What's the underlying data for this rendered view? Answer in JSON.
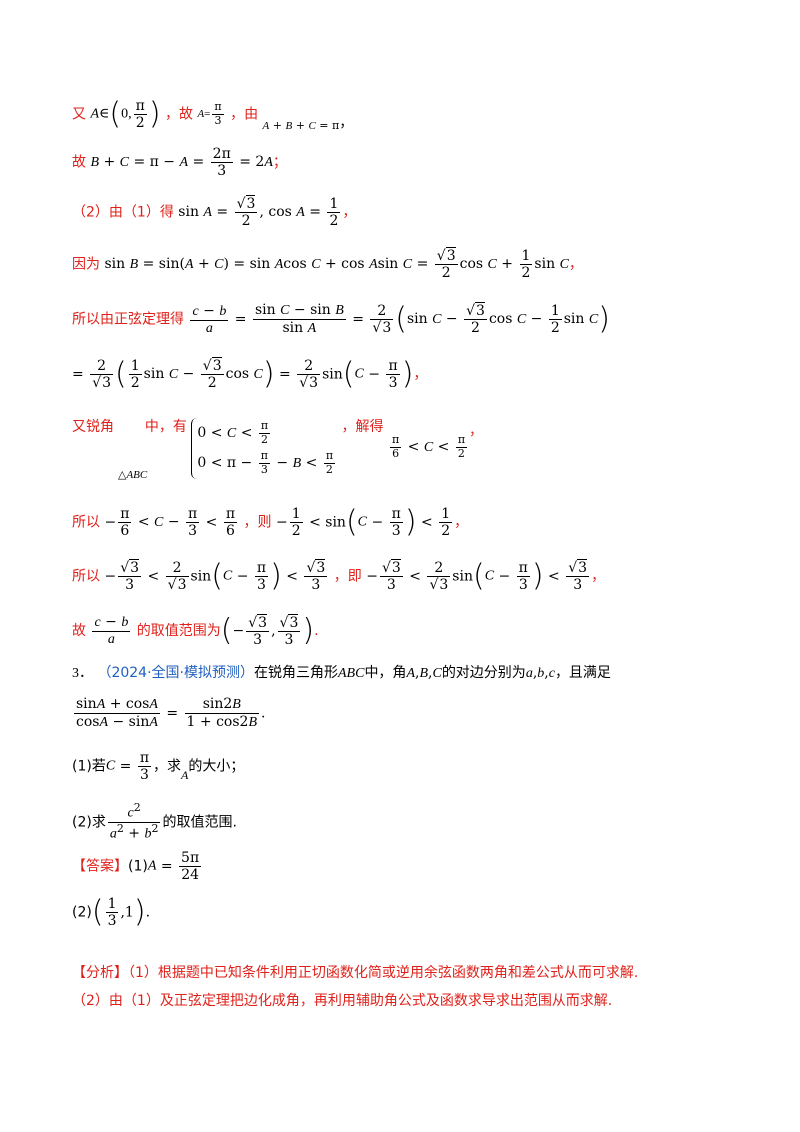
{
  "l1": {
    "a": "又",
    "b": "，故",
    "c": "，由"
  },
  "l2": {
    "a": "故"
  },
  "l3": {
    "a": "（2）由（1）得"
  },
  "l4": {
    "a": "因为"
  },
  "l5": {
    "a": "所以由正弦定理得"
  },
  "l7": {
    "a": "又锐角",
    "b": "中，有",
    "c": "，解得",
    "abc": "△ABC"
  },
  "l8": {
    "a": "所以",
    "b": "，则"
  },
  "l9": {
    "a": "所以",
    "b": "，即"
  },
  "l10": {
    "a": "故",
    "b": "的取值范围为"
  },
  "q3": {
    "num": "3．",
    "source": "（2024·全国·模拟预测）",
    "text_a": "在锐角三角形",
    "text_b": "中，角",
    "text_c": "的对边分别为",
    "text_d": "，且满足",
    "p1": "(1)若",
    "p1b": "，求",
    "p1c": "的大小；",
    "p2": "(2)求",
    "p2b": "的取值范围."
  },
  "answer": {
    "label": "【答案】",
    "a1": "(1)",
    "a2": "(2)"
  },
  "analysis": {
    "label": "【分析】",
    "t1": "（1）根据题中已知条件利用正切函数化简或逆用余弦函数两角和差公式从而可求解.",
    "t2": "（2）由（1）及正弦定理把边化成角，再利用辅助角公式及函数求导求出范围从而求解."
  }
}
